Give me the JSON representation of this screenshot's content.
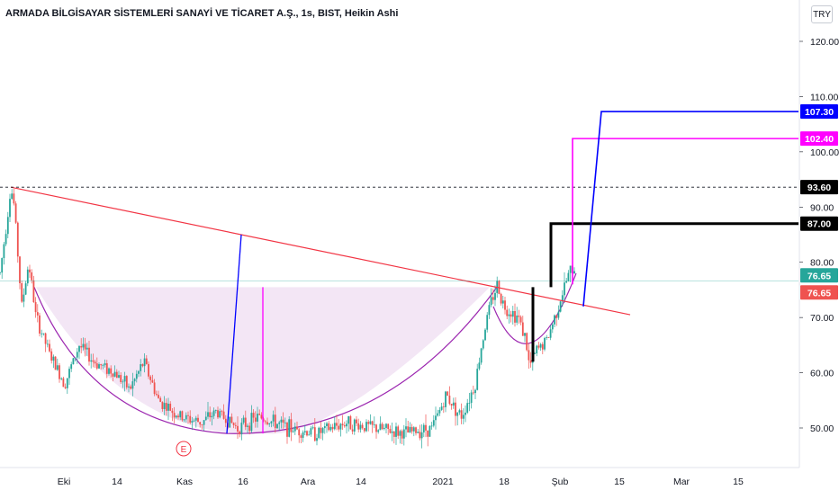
{
  "header": {
    "title": "ARMADA BİLGİSAYAR SİSTEMLERİ SANAYİ VE TİCARET A.Ş., 1s, BIST, Heikin Ashi",
    "currency": "TRY"
  },
  "colors": {
    "up": "#26a69a",
    "down": "#ef5350",
    "trendline": "#f23645",
    "cup_fill": "#f3e6f5",
    "cup_curve": "#9c27b0",
    "blue_target": "#0000ff",
    "magenta_target": "#ff00ff",
    "black_target": "#000000",
    "last_price_up": "#26a69a",
    "last_price_down": "#ef5350"
  },
  "chart_data": {
    "type": "candlestick",
    "chart_style": "Heikin Ashi",
    "x_ticks": [
      "Eki",
      "14",
      "Kas",
      "16",
      "Ara",
      "14",
      "2021",
      "18",
      "Şub",
      "15",
      "Mar",
      "15"
    ],
    "y_ticks": [
      50,
      60,
      70,
      80,
      90,
      100,
      110,
      120
    ],
    "y_tick_labels": [
      "50.00",
      "60.00",
      "70.00",
      "80.00",
      "90.00",
      "100.00",
      "110.00",
      "120.00"
    ],
    "ylim": [
      42,
      126
    ],
    "grid": false,
    "price_labels": [
      {
        "value": 107.3,
        "text": "107.30",
        "color": "#0000ff",
        "style": "filled"
      },
      {
        "value": 102.4,
        "text": "102.40",
        "color": "#ff00ff",
        "style": "filled"
      },
      {
        "value": 93.6,
        "text": "93.60",
        "color": "#000000",
        "style": "filled"
      },
      {
        "value": 87.0,
        "text": "87.00",
        "color": "#000000",
        "style": "filled"
      },
      {
        "value": 76.65,
        "text": "76.65",
        "color": "#26a69a",
        "style": "filled"
      },
      {
        "value": 76.65,
        "text": "76.65",
        "color": "#ef5350",
        "style": "filled"
      }
    ],
    "horizontal_dashed_line": 93.6,
    "last_price_line": 76.65,
    "events": [
      {
        "label": "E",
        "x_hint": "early Kas"
      }
    ],
    "price_path_keypoints": [
      [
        0,
        78
      ],
      [
        2,
        88
      ],
      [
        3,
        93.6
      ],
      [
        4,
        90
      ],
      [
        6,
        72
      ],
      [
        8,
        80
      ],
      [
        10,
        70
      ],
      [
        14,
        63
      ],
      [
        18,
        58
      ],
      [
        22,
        65
      ],
      [
        26,
        62
      ],
      [
        32,
        60
      ],
      [
        36,
        57
      ],
      [
        40,
        62
      ],
      [
        44,
        55
      ],
      [
        50,
        52
      ],
      [
        56,
        51
      ],
      [
        60,
        53
      ],
      [
        66,
        50
      ],
      [
        72,
        52
      ],
      [
        80,
        50
      ],
      [
        88,
        49
      ],
      [
        96,
        51
      ],
      [
        104,
        50
      ],
      [
        112,
        49
      ],
      [
        120,
        50
      ],
      [
        124,
        56
      ],
      [
        128,
        52
      ],
      [
        132,
        58
      ],
      [
        134,
        66
      ],
      [
        136,
        72
      ],
      [
        138,
        76
      ],
      [
        140,
        72
      ],
      [
        144,
        70
      ],
      [
        146,
        66
      ],
      [
        147,
        61
      ],
      [
        149,
        64
      ],
      [
        152,
        66
      ],
      [
        154,
        70
      ],
      [
        156,
        74
      ],
      [
        158,
        78
      ],
      [
        160,
        79
      ]
    ],
    "drawings": {
      "trendline": {
        "from": [
          3,
          93.6
        ],
        "to": [
          175,
          70.5
        ]
      },
      "cup_zone": {
        "top": 75.5,
        "x_range": [
          10,
          136
        ]
      },
      "blue_target": {
        "base": [
          63,
          49
        ],
        "top": [
          67,
          85
        ],
        "target": 107.3
      },
      "magenta_target": {
        "base": [
          73,
          49
        ],
        "top": [
          73,
          75.5
        ],
        "target": 102.4
      },
      "black_target": {
        "stem_x": 148,
        "stem_from": 62,
        "stem_to": 75.5,
        "stem2_x": 153,
        "stem2_from": 75.5,
        "stem2_to": 87,
        "target": 87.0
      },
      "blue_breakout": {
        "from": [
          162,
          72
        ],
        "to": [
          167,
          107.3
        ]
      },
      "magenta_breakout": {
        "from": [
          159,
          76
        ],
        "to": [
          159,
          102.4
        ]
      }
    }
  }
}
